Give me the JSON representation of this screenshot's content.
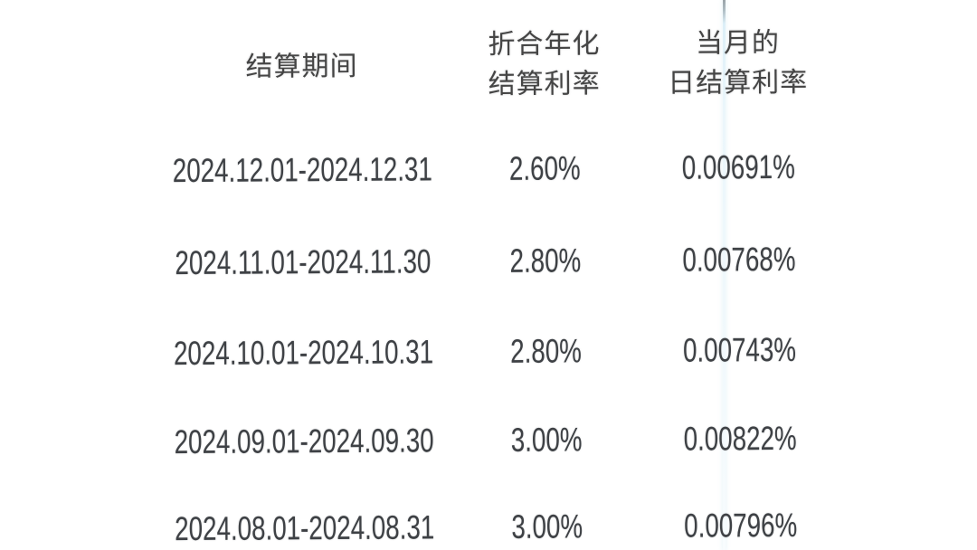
{
  "page": {
    "background_color": "#ffffff",
    "photo_artifact": {
      "name": "screen-glare-streak",
      "top_color": "#9aa3a8",
      "body_color": "#dbeff8"
    }
  },
  "rate_table": {
    "header_color": "#454545",
    "text_color": "#3e4145",
    "columns": {
      "period": {
        "title": "结算期间"
      },
      "annualized": {
        "title_line1": "折合年化",
        "title_line2": "结算利率"
      },
      "daily": {
        "title_line1": "当月的",
        "title_line2": "日结算利率"
      }
    },
    "rows": [
      {
        "period": "2024.12.01-2024.12.31",
        "annualized_rate": "2.60%",
        "daily_rate": "0.00691%"
      },
      {
        "period": "2024.11.01-2024.11.30",
        "annualized_rate": "2.80%",
        "daily_rate": "0.00768%"
      },
      {
        "period": "2024.10.01-2024.10.31",
        "annualized_rate": "2.80%",
        "daily_rate": "0.00743%"
      },
      {
        "period": "2024.09.01-2024.09.30",
        "annualized_rate": "3.00%",
        "daily_rate": "0.00822%"
      },
      {
        "period": "2024.08.01-2024.08.31",
        "annualized_rate": "3.00%",
        "daily_rate": "0.00796%"
      }
    ]
  }
}
